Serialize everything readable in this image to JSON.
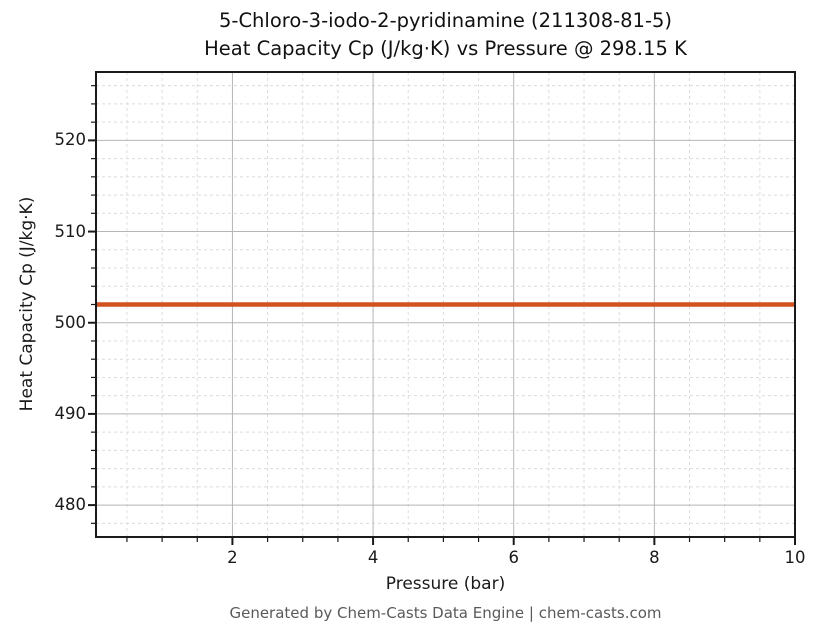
{
  "header": {
    "title_line1": "5-Chloro-3-iodo-2-pyridinamine (211308-81-5)",
    "title_line2": "Heat Capacity Cp (J/kg·K) vs Pressure @ 298.15 K"
  },
  "footer": {
    "text": "Generated by Chem-Casts Data Engine | chem-casts.com"
  },
  "chart_data": {
    "type": "line",
    "title": "5-Chloro-3-iodo-2-pyridinamine (211308-81-5)\nHeat Capacity Cp (J/kg·K) vs Pressure @ 298.15 K",
    "substance": "5-Chloro-3-iodo-2-pyridinamine",
    "cas_number": "211308-81-5",
    "temperature": "298.15 K",
    "xlabel": "Pressure (bar)",
    "ylabel": "Heat Capacity Cp (J/kg·K)",
    "xlim": [
      0.06,
      10
    ],
    "ylim": [
      476.5,
      527.5
    ],
    "x_ticks": [
      2,
      4,
      6,
      8,
      10
    ],
    "y_ticks": [
      480,
      490,
      500,
      510,
      520
    ],
    "x_minor_step": 0.5,
    "y_minor_step": 2,
    "grid": {
      "major": true,
      "minor": true,
      "major_color": "#b5b5b5",
      "minor_color": "#dcdcdc",
      "minor_style": "dashed"
    },
    "legend_position": "none",
    "series": [
      {
        "name": "Heat Capacity Cp",
        "color": "#d1521f",
        "linewidth": 4.5,
        "x": [
          0.06,
          10
        ],
        "y": [
          502,
          502
        ]
      }
    ],
    "constant_value": 502,
    "spine_color": "#1a1a1a"
  }
}
